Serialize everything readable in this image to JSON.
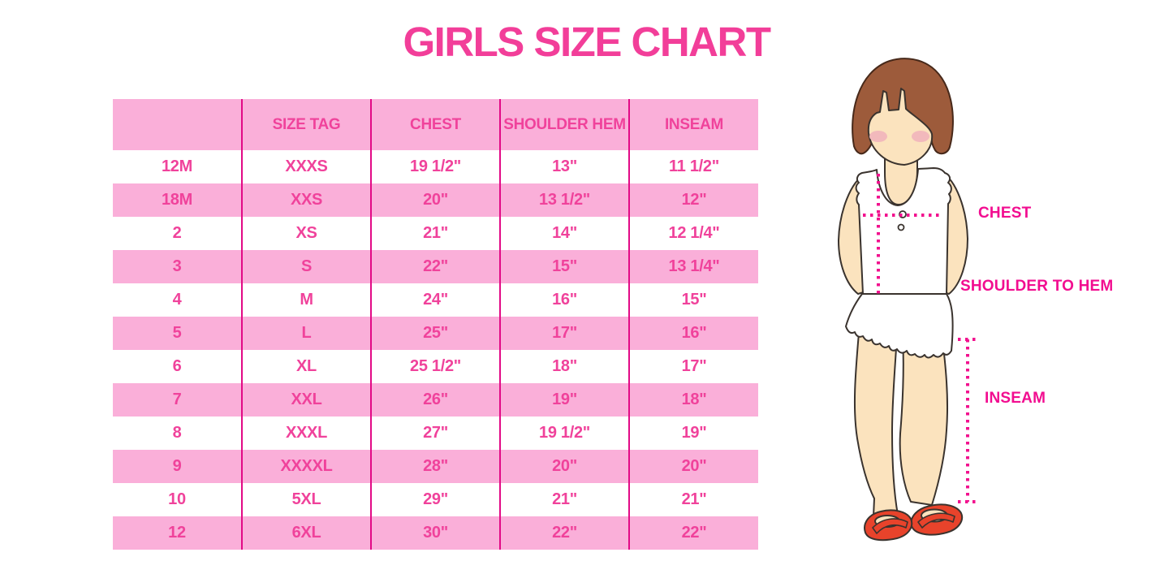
{
  "page": {
    "title": "GIRLS SIZE CHART"
  },
  "colors": {
    "title_pink": "#F23E99",
    "table_text_pink": "#F0429B",
    "band_pink": "#FAAFD9",
    "divider_magenta": "#E20A86",
    "label_magenta": "#F20D90",
    "dot_magenta": "#F2108E",
    "hair_brown": "#9D5B3B",
    "skin": "#FBE3BE",
    "blush": "#F2B9BC",
    "shoe_red": "#E8432B",
    "garment_white": "#FFFFFF",
    "outline_dark": "#3A332E"
  },
  "table": {
    "headers": [
      "",
      "SIZE TAG",
      "CHEST",
      "SHOULDER HEM",
      "INSEAM"
    ],
    "rows": [
      [
        "12M",
        "XXXS",
        "19 1/2\"",
        "13\"",
        "11 1/2\""
      ],
      [
        "18M",
        "XXS",
        "20\"",
        "13 1/2\"",
        "12\""
      ],
      [
        "2",
        "XS",
        "21\"",
        "14\"",
        "12 1/4\""
      ],
      [
        "3",
        "S",
        "22\"",
        "15\"",
        "13 1/4\""
      ],
      [
        "4",
        "M",
        "24\"",
        "16\"",
        "15\""
      ],
      [
        "5",
        "L",
        "25\"",
        "17\"",
        "16\""
      ],
      [
        "6",
        "XL",
        "25 1/2\"",
        "18\"",
        "17\""
      ],
      [
        "7",
        "XXL",
        "26\"",
        "19\"",
        "18\""
      ],
      [
        "8",
        "XXXL",
        "27\"",
        "19 1/2\"",
        "19\""
      ],
      [
        "9",
        "XXXXL",
        "28\"",
        "20\"",
        "20\""
      ],
      [
        "10",
        "5XL",
        "29\"",
        "21\"",
        "21\""
      ],
      [
        "12",
        "6XL",
        "30\"",
        "22\"",
        "22\""
      ]
    ]
  },
  "figure": {
    "labels": {
      "chest": "CHEST",
      "shoulder_to_hem": "SHOULDER TO HEM",
      "inseam": "INSEAM"
    }
  }
}
